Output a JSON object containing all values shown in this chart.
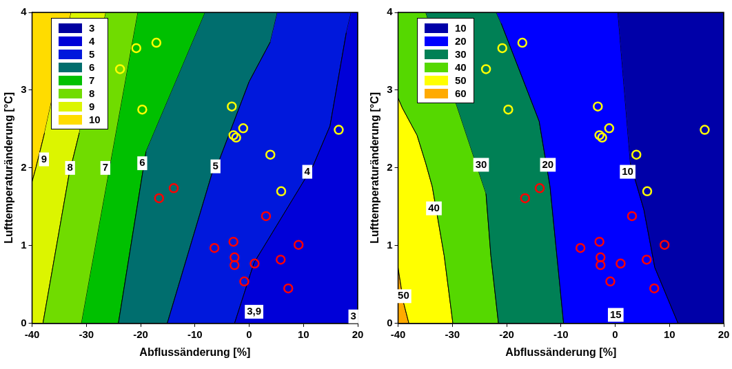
{
  "chart_data": [
    {
      "type": "scatter",
      "xlabel": "Abflussänderung [%]",
      "ylabel": "Lufttemperaturänderung [°C]",
      "xlim": [
        -40,
        20
      ],
      "xticks": [
        -40,
        -30,
        -20,
        -10,
        0,
        10,
        20
      ],
      "ylim": [
        0,
        4
      ],
      "yticks": [
        0,
        1,
        2,
        3,
        4
      ],
      "grid": false,
      "legend": "top left",
      "series": [
        {
          "type": "area",
          "name": "3",
          "color": "#0000a0"
        },
        {
          "type": "area",
          "name": "4",
          "color": "#0000d8",
          "x": [
            18.8,
            20,
            20,
            -2.7,
            0.9,
            11.8,
            14.9,
            17.9
          ],
          "values": [
            4,
            4,
            0,
            0,
            0.78,
            2.03,
            2.54,
            3.74
          ]
        },
        {
          "type": "area",
          "name": "5",
          "color": "#0018dc",
          "x": [
            5.2,
            18.8,
            17.9,
            14.9,
            11.8,
            0.9,
            -2.7,
            -15.1,
            -6.8,
            -5.4,
            0.0,
            3.9
          ],
          "values": [
            4,
            4,
            3.74,
            2.54,
            2.03,
            0.78,
            0,
            0,
            1.94,
            2.12,
            3.11,
            3.62
          ]
        },
        {
          "type": "area",
          "name": "6",
          "color": "#006e6e",
          "x": [
            -8.1,
            5.2,
            3.9,
            0.0,
            -5.4,
            -6.8,
            -15.1,
            -24.1,
            -19.0
          ],
          "values": [
            4,
            4,
            3.62,
            3.11,
            2.12,
            1.94,
            0,
            0,
            2.21
          ]
        },
        {
          "type": "area",
          "name": "7",
          "color": "#00c000",
          "x": [
            -20.5,
            -8.1,
            -19.0,
            -24.1,
            -30.9
          ],
          "values": [
            4,
            4,
            2.21,
            0,
            0
          ]
        },
        {
          "type": "area",
          "name": "8",
          "color": "#70dc00",
          "x": [
            -26.4,
            -20.5,
            -30.9,
            -38.0,
            -33.2,
            -31.3
          ],
          "values": [
            4,
            4,
            0,
            0,
            1.91,
            2.45
          ]
        },
        {
          "type": "area",
          "name": "9",
          "color": "#dcf500",
          "x": [
            -32.8,
            -26.4,
            -31.3,
            -33.2,
            -38.0,
            -40,
            -40,
            -39.3,
            -37.7
          ],
          "values": [
            4,
            4,
            2.45,
            1.91,
            0,
            0,
            1.82,
            2.0,
            2.45
          ]
        },
        {
          "type": "area",
          "name": "10",
          "color": "#ffdc00",
          "x": [
            -40,
            -32.8,
            -37.7,
            -39.3,
            -40
          ],
          "values": [
            4,
            4,
            2.45,
            2.0,
            1.82
          ]
        },
        {
          "type": "scatter",
          "marker": "circle",
          "color": "#ffff00",
          "x": [
            -23.8,
            -20.8,
            -17.1,
            -19.7,
            -3.2,
            -1.1,
            -2.9,
            3.9,
            5.9,
            16.5
          ],
          "values": [
            3.27,
            3.54,
            3.61,
            2.75,
            2.79,
            2.51,
            2.42,
            2.17,
            1.7,
            2.49
          ]
        },
        {
          "type": "scatter",
          "marker": "circle",
          "color": "#ffff00",
          "x": [
            -2.4
          ],
          "values": [
            2.39
          ]
        },
        {
          "type": "scatter",
          "marker": "circle",
          "color": "#ff0000",
          "x": [
            -16.6,
            -13.9,
            3.1,
            -2.9,
            -6.4,
            -2.7,
            1.0,
            5.8,
            9.1,
            -0.9,
            7.2
          ],
          "values": [
            1.61,
            1.74,
            1.38,
            1.05,
            0.97,
            0.85,
            0.77,
            0.82,
            1.01,
            0.54,
            0.45
          ]
        },
        {
          "type": "scatter",
          "marker": "circle",
          "color": "#ff0000",
          "x": [
            -2.7
          ],
          "values": [
            0.75
          ]
        }
      ],
      "annotations": [
        {
          "text": "9",
          "x": -37.8,
          "y": 2.11
        },
        {
          "text": "8",
          "x": -33.0,
          "y": 2.0
        },
        {
          "text": "7",
          "x": -26.5,
          "y": 2.0
        },
        {
          "text": "6",
          "x": -19.7,
          "y": 2.06
        },
        {
          "text": "5",
          "x": -6.2,
          "y": 2.02
        },
        {
          "text": "4",
          "x": 10.7,
          "y": 1.95
        },
        {
          "text": "3,9",
          "x": 0.9,
          "y": 0.15
        },
        {
          "text": "3",
          "x": 19.2,
          "y": 0.09
        }
      ]
    },
    {
      "type": "scatter",
      "xlabel": "Abflussänderung [%]",
      "ylabel": "Lufttemperaturänderung [°C]",
      "xlim": [
        -40,
        20
      ],
      "xticks": [
        -40,
        -30,
        -20,
        -10,
        0,
        10,
        20
      ],
      "ylim": [
        0,
        4
      ],
      "yticks": [
        0,
        1,
        2,
        3,
        4
      ],
      "grid": false,
      "legend": "top left",
      "series": [
        {
          "type": "area",
          "name": "10",
          "color": "#0000a8",
          "x": [
            0.5,
            20,
            20,
            11.6,
            7.3,
            5.3,
            2.8
          ],
          "values": [
            4,
            4,
            0,
            0,
            0.72,
            1.46,
            2.06
          ]
        },
        {
          "type": "area",
          "name": "20",
          "color": "#0000ff",
          "x": [
            -21.9,
            0.5,
            2.8,
            5.3,
            7.3,
            11.6,
            -9.5,
            -12.0,
            -14.0,
            -21.0
          ],
          "values": [
            4,
            4,
            2.06,
            1.46,
            0.72,
            0,
            0,
            1.76,
            2.6,
            3.86
          ]
        },
        {
          "type": "area",
          "name": "30",
          "color": "#008055",
          "x": [
            -34.9,
            -21.9,
            -21.0,
            -14.0,
            -12.0,
            -9.5,
            -21.5,
            -22.9,
            -23.8
          ],
          "values": [
            4,
            4,
            3.86,
            2.6,
            1.76,
            0,
            0,
            0.87,
            1.67
          ]
        },
        {
          "type": "area",
          "name": "40",
          "color": "#55d800",
          "x": [
            -40,
            -34.9,
            -23.8,
            -22.9,
            -21.5,
            -29.9,
            -31.5,
            -33.7,
            -34.9,
            -36.5,
            -39.2,
            -40
          ],
          "values": [
            4,
            4,
            1.67,
            0.87,
            0,
            0,
            0.87,
            1.76,
            2.06,
            2.42,
            2.77,
            2.9
          ]
        },
        {
          "type": "area",
          "name": "50",
          "color": "#ffff00",
          "x": [
            -40,
            -39.2,
            -36.5,
            -34.9,
            -33.7,
            -31.5,
            -29.9,
            -38.0,
            -39.0,
            -40
          ],
          "values": [
            2.9,
            2.77,
            2.42,
            2.06,
            1.76,
            0.87,
            0,
            0,
            0.27,
            0.72
          ]
        },
        {
          "type": "area",
          "name": "60",
          "color": "#ffaa00",
          "x": [
            -40,
            -39.0,
            -38.0,
            -40
          ],
          "values": [
            0.72,
            0.27,
            0,
            0
          ]
        },
        {
          "type": "scatter",
          "marker": "circle",
          "color": "#ffff00",
          "x": [
            -23.8,
            -20.8,
            -17.1,
            -19.7,
            -3.2,
            -1.1,
            -2.9,
            3.9,
            5.9,
            16.5
          ],
          "values": [
            3.27,
            3.54,
            3.61,
            2.75,
            2.79,
            2.51,
            2.42,
            2.17,
            1.7,
            2.49
          ]
        },
        {
          "type": "scatter",
          "marker": "circle",
          "color": "#ffff00",
          "x": [
            -2.4
          ],
          "values": [
            2.39
          ]
        },
        {
          "type": "scatter",
          "marker": "circle",
          "color": "#ff0000",
          "x": [
            -16.6,
            -13.9,
            3.1,
            -2.9,
            -6.4,
            -2.7,
            1.0,
            5.8,
            9.1,
            -0.9,
            7.2
          ],
          "values": [
            1.61,
            1.74,
            1.38,
            1.05,
            0.97,
            0.85,
            0.77,
            0.82,
            1.01,
            0.54,
            0.45
          ]
        },
        {
          "type": "scatter",
          "marker": "circle",
          "color": "#ff0000",
          "x": [
            -2.7
          ],
          "values": [
            0.75
          ]
        }
      ],
      "annotations": [
        {
          "text": "30",
          "x": -24.7,
          "y": 2.04
        },
        {
          "text": "20",
          "x": -12.4,
          "y": 2.04
        },
        {
          "text": "10",
          "x": 2.3,
          "y": 1.95
        },
        {
          "text": "40",
          "x": -33.4,
          "y": 1.48
        },
        {
          "text": "50",
          "x": -39.0,
          "y": 0.35
        },
        {
          "text": "15",
          "x": 0.1,
          "y": 0.11
        }
      ]
    }
  ]
}
